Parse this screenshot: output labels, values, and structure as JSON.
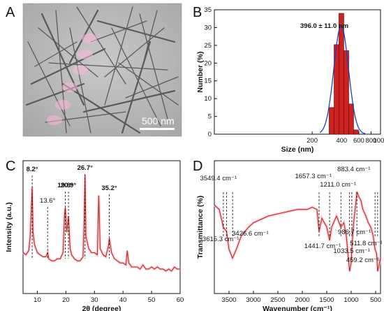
{
  "panels": {
    "A": {
      "label": "A",
      "scale_bar_text": "500 nm"
    },
    "B": {
      "label": "B"
    },
    "C": {
      "label": "C"
    },
    "D": {
      "label": "D"
    }
  },
  "colors": {
    "bar_fill": "#cc2222",
    "fit_line": "#1f3fb8",
    "xrd_line": "#aa3311",
    "ftir_line": "#aa3311",
    "highlight": "#ffb6d9"
  },
  "chart_data": [
    {
      "panel": "B",
      "type": "bar",
      "title": "",
      "xlabel": "Size (nm)",
      "ylabel": "Number (%)",
      "xscale": "log",
      "xlim": [
        20,
        1000
      ],
      "ylim": [
        0,
        35
      ],
      "xticks": [
        200,
        400,
        600,
        800,
        1000
      ],
      "yticks": [
        0,
        5,
        10,
        15,
        20,
        25,
        30,
        35
      ],
      "bins": [
        {
          "x": 316,
          "value": 7.5
        },
        {
          "x": 355,
          "value": 25.2
        },
        {
          "x": 398,
          "value": 34.0
        },
        {
          "x": 447,
          "value": 23.5
        },
        {
          "x": 501,
          "value": 8.5
        },
        {
          "x": 562,
          "value": 1.2
        }
      ],
      "fit": {
        "type": "gaussian",
        "mean": 396.0,
        "sd": 11.0,
        "peak": 30.5
      },
      "annotation": "396.0 ± 11.0 nm"
    },
    {
      "panel": "C",
      "type": "line",
      "xlabel": "2θ (degree)",
      "ylabel": "Intensity (a.u.)",
      "xlim": [
        5,
        60
      ],
      "xticks": [
        10,
        20,
        30,
        40,
        50,
        60
      ],
      "series": [
        {
          "x": [
            5,
            6,
            7,
            7.5,
            8,
            8.2,
            8.5,
            9,
            10,
            11,
            12,
            13,
            13.6,
            14,
            15,
            16,
            17,
            18,
            19,
            19.5,
            19.8,
            20.3,
            20.9,
            21.5,
            22,
            23,
            24,
            25,
            26,
            26.4,
            26.7,
            27,
            28,
            29,
            30,
            31,
            31.5,
            32,
            33,
            34,
            35,
            35.2,
            36,
            37,
            38,
            39,
            40,
            41,
            41.5,
            42,
            43,
            44,
            45,
            46,
            47,
            48,
            49,
            50,
            51,
            52,
            53,
            54,
            55,
            56,
            57,
            58,
            59,
            60
          ],
          "y": [
            20,
            19,
            21,
            28,
            45,
            52,
            30,
            24,
            20,
            19,
            18,
            18,
            20,
            17,
            16,
            16,
            17,
            17,
            20,
            38,
            42,
            30,
            38,
            22,
            19,
            17,
            16,
            16,
            18,
            35,
            58,
            28,
            22,
            20,
            20,
            19,
            48,
            22,
            19,
            18,
            24,
            27,
            20,
            17,
            16,
            15,
            15,
            14,
            21,
            15,
            13,
            13,
            13,
            12,
            14,
            12,
            12,
            13,
            12,
            13,
            12,
            12,
            11,
            12,
            11,
            13,
            12,
            12
          ]
        }
      ],
      "peaks": [
        {
          "x": 8.2,
          "label": "8.2°",
          "bold": true
        },
        {
          "x": 13.6,
          "label": "13.6°",
          "bold": false
        },
        {
          "x": 19.8,
          "label": "19.8°",
          "bold": true
        },
        {
          "x": 20.9,
          "label": "20.9°",
          "bold": true
        },
        {
          "x": 26.7,
          "label": "26.7°",
          "bold": true
        },
        {
          "x": 35.2,
          "label": "35.2°",
          "bold": true
        }
      ]
    },
    {
      "panel": "D",
      "type": "line",
      "xlabel": "Wavenumber (cm⁻¹)",
      "ylabel": "Transmittance (%)",
      "xlim": [
        3800,
        400
      ],
      "xticks": [
        3500,
        3000,
        2500,
        2000,
        1500,
        1000,
        500
      ],
      "series": [
        {
          "x": [
            3800,
            3700,
            3615.3,
            3549.4,
            3500,
            3426.6,
            3350,
            3250,
            3100,
            3000,
            2900,
            2700,
            2500,
            2300,
            2100,
            1900,
            1800,
            1700,
            1657.3,
            1600,
            1500,
            1441.7,
            1400,
            1300,
            1211.0,
            1150,
            1100,
            1033.5,
            1000,
            986.7,
            950,
            900,
            883.4,
            850,
            800,
            760,
            700,
            650,
            600,
            550,
            511.8,
            480,
            459.2,
            420,
            400
          ],
          "y": [
            60,
            58,
            50,
            48,
            40,
            36,
            40,
            46,
            50,
            52,
            53,
            55,
            56,
            57,
            58,
            58,
            59,
            58,
            48,
            54,
            50,
            44,
            50,
            55,
            50,
            52,
            46,
            30,
            34,
            40,
            52,
            62,
            66,
            64,
            62,
            58,
            55,
            52,
            50,
            46,
            40,
            38,
            30,
            34,
            36
          ]
        }
      ],
      "peaks": [
        {
          "x": 3615.3,
          "label": "3615.3 cm⁻¹"
        },
        {
          "x": 3549.4,
          "label": "3549.4 cm⁻¹"
        },
        {
          "x": 3426.6,
          "label": "3426.6 cm⁻¹"
        },
        {
          "x": 1657.3,
          "label": "1657.3 cm⁻¹"
        },
        {
          "x": 1441.7,
          "label": "1441.7 cm⁻¹"
        },
        {
          "x": 1211.0,
          "label": "1211.0 cm⁻¹"
        },
        {
          "x": 1033.5,
          "label": "1033.5 cm⁻¹"
        },
        {
          "x": 986.7,
          "label": "986.7 cm⁻¹"
        },
        {
          "x": 883.4,
          "label": "883.4 cm⁻¹"
        },
        {
          "x": 511.8,
          "label": "511.8 cm⁻¹"
        },
        {
          "x": 459.2,
          "label": "459.2 cm⁻¹"
        }
      ]
    }
  ]
}
